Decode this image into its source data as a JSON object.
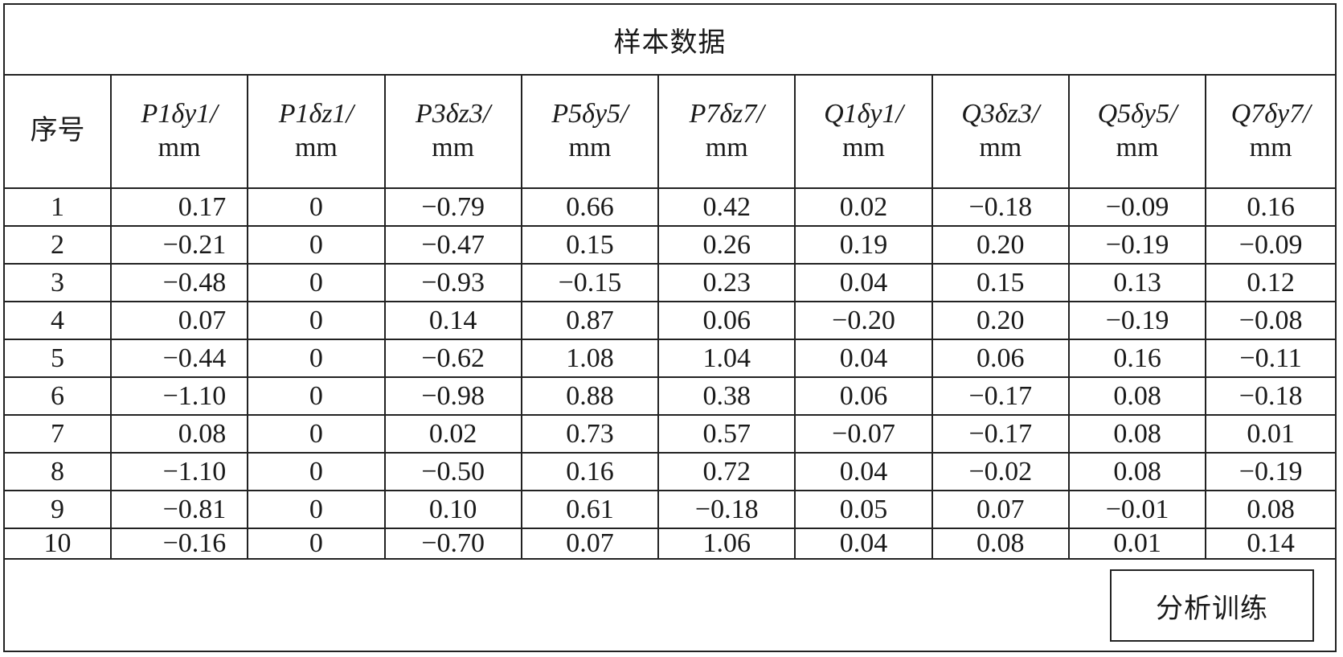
{
  "title": "样本数据",
  "table": {
    "columns": [
      {
        "label": "序号",
        "unit": ""
      },
      {
        "label": "P1δy1/",
        "unit": "mm"
      },
      {
        "label": "P1δz1/",
        "unit": "mm"
      },
      {
        "label": "P3δz3/",
        "unit": "mm"
      },
      {
        "label": "P5δy5/",
        "unit": "mm"
      },
      {
        "label": "P7δz7/",
        "unit": "mm"
      },
      {
        "label": "Q1δy1/",
        "unit": "mm"
      },
      {
        "label": "Q3δz3/",
        "unit": "mm"
      },
      {
        "label": "Q5δy5/",
        "unit": "mm"
      },
      {
        "label": "Q7δy7/",
        "unit": "mm"
      }
    ],
    "rows": [
      [
        "1",
        "0.17",
        "0",
        "−0.79",
        "0.66",
        "0.42",
        "0.02",
        "−0.18",
        "−0.09",
        "0.16"
      ],
      [
        "2",
        "−0.21",
        "0",
        "−0.47",
        "0.15",
        "0.26",
        "0.19",
        "0.20",
        "−0.19",
        "−0.09"
      ],
      [
        "3",
        "−0.48",
        "0",
        "−0.93",
        "−0.15",
        "0.23",
        "0.04",
        "0.15",
        "0.13",
        "0.12"
      ],
      [
        "4",
        "0.07",
        "0",
        "0.14",
        "0.87",
        "0.06",
        "−0.20",
        "0.20",
        "−0.19",
        "−0.08"
      ],
      [
        "5",
        "−0.44",
        "0",
        "−0.62",
        "1.08",
        "1.04",
        "0.04",
        "0.06",
        "0.16",
        "−0.11"
      ],
      [
        "6",
        "−1.10",
        "0",
        "−0.98",
        "0.88",
        "0.38",
        "0.06",
        "−0.17",
        "0.08",
        "−0.18"
      ],
      [
        "7",
        "0.08",
        "0",
        "0.02",
        "0.73",
        "0.57",
        "−0.07",
        "−0.17",
        "0.08",
        "0.01"
      ],
      [
        "8",
        "−1.10",
        "0",
        "−0.50",
        "0.16",
        "0.72",
        "0.04",
        "−0.02",
        "0.08",
        "−0.19"
      ],
      [
        "9",
        "−0.81",
        "0",
        "0.10",
        "0.61",
        "−0.18",
        "0.05",
        "0.07",
        "−0.01",
        "0.08"
      ],
      [
        "10",
        "−0.16",
        "0",
        "−0.70",
        "0.07",
        "1.06",
        "0.04",
        "0.08",
        "0.01",
        "0.14"
      ]
    ]
  },
  "button": {
    "label": "分析训练"
  }
}
